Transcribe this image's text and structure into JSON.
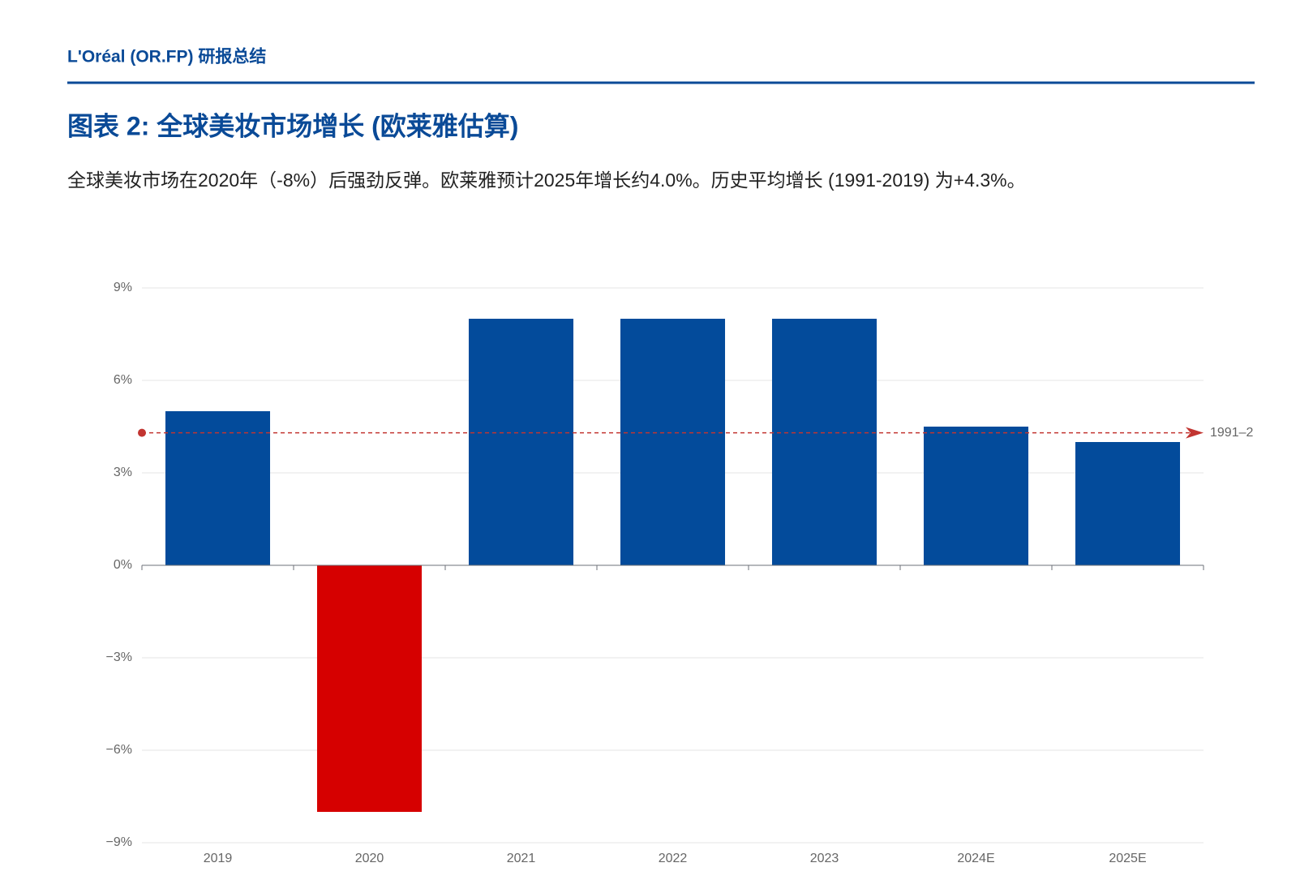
{
  "header": "L'Oréal (OR.FP) 研报总结",
  "chart_data": {
    "type": "bar",
    "title": "图表 2: 全球美妆市场增长 (欧莱雅估算)",
    "subtitle": "全球美妆市场在2020年（-8%）后强劲反弹。欧莱雅预计2025年增长约4.0%。历史平均增长 (1991-2019) 为+4.3%。",
    "categories": [
      "2019",
      "2020",
      "2021",
      "2022",
      "2023",
      "2024E",
      "2025E"
    ],
    "values": [
      5,
      -8,
      8,
      8,
      8,
      4.5,
      4
    ],
    "color": "#034b9b",
    "negative_color": "#d60000",
    "ylim": [
      -9,
      9
    ],
    "yticks": [
      {
        "value": -9,
        "label": "−9%"
      },
      {
        "value": -6,
        "label": "−6%"
      },
      {
        "value": -3,
        "label": "−3%"
      },
      {
        "value": 0,
        "label": "0%"
      },
      {
        "value": 3,
        "label": "3%"
      },
      {
        "value": 6,
        "label": "6%"
      },
      {
        "value": 9,
        "label": "9%"
      }
    ],
    "grid": true,
    "mark_line": {
      "value": 4.3,
      "label": "1991–2",
      "color": "#c23531"
    }
  }
}
